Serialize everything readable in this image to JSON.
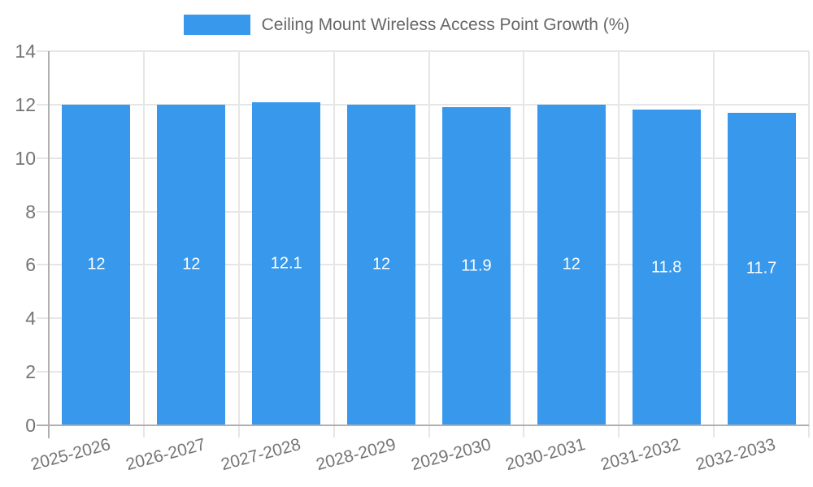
{
  "legend": {
    "label": "Ceiling Mount Wireless Access Point Growth (%)"
  },
  "chart_data": {
    "type": "bar",
    "title": "",
    "xlabel": "",
    "ylabel": "",
    "categories": [
      "2025-2026",
      "2026-2027",
      "2027-2028",
      "2028-2029",
      "2029-2030",
      "2030-2031",
      "2031-2032",
      "2032-2033"
    ],
    "series": [
      {
        "name": "Ceiling Mount Wireless Access Point Growth (%)",
        "values": [
          12,
          12,
          12.1,
          12,
          11.9,
          12,
          11.8,
          11.7
        ],
        "value_labels": [
          "12",
          "12",
          "12.1",
          "12",
          "11.9",
          "12",
          "11.8",
          "11.7"
        ]
      }
    ],
    "ylim": [
      0,
      14
    ],
    "yticks": [
      0,
      2,
      4,
      6,
      8,
      10,
      12,
      14
    ],
    "grid": true,
    "legend_position": "top-center",
    "colors": {
      "bar": "#3898ec",
      "grid": "#e6e6e6",
      "axis": "#b0b0b0",
      "tick_label": "#757575",
      "legend_text": "#666666",
      "value_label": "#ffffff",
      "background": "#ffffff"
    }
  }
}
